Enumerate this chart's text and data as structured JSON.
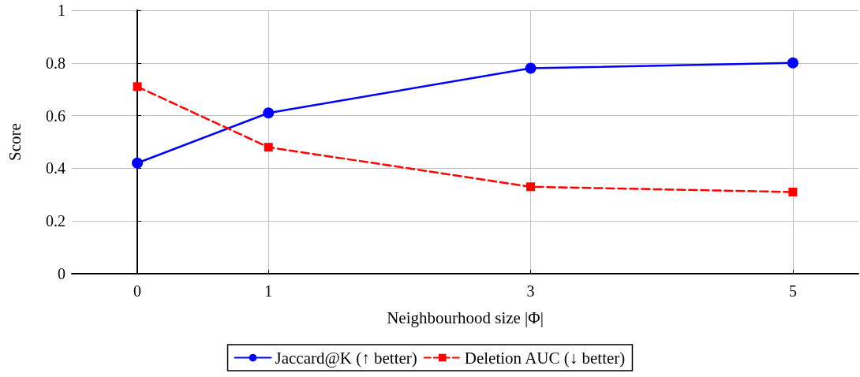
{
  "chart_data": {
    "type": "line",
    "xlabel": "Neighbourhood size |Φ|",
    "ylabel": "Score",
    "x": [
      0,
      1,
      3,
      5
    ],
    "series": [
      {
        "name": "Jaccard@K (↑ better)",
        "color": "#0000ff",
        "values": [
          0.42,
          0.61,
          0.78,
          0.8
        ],
        "marker": "circle",
        "line_style": "solid"
      },
      {
        "name": "Deletion AUC (↓ better)",
        "color": "#ff0000",
        "values": [
          0.71,
          0.48,
          0.33,
          0.31
        ],
        "marker": "square",
        "line_style": "dashed"
      }
    ],
    "xlim": [
      -0.5,
      5.5
    ],
    "xticks": [
      0,
      1,
      3,
      5
    ],
    "ylim": [
      0,
      1
    ],
    "yticks": [
      0,
      0.2,
      0.4,
      0.6,
      0.8,
      1
    ],
    "grid": true,
    "legend": "bottom"
  }
}
